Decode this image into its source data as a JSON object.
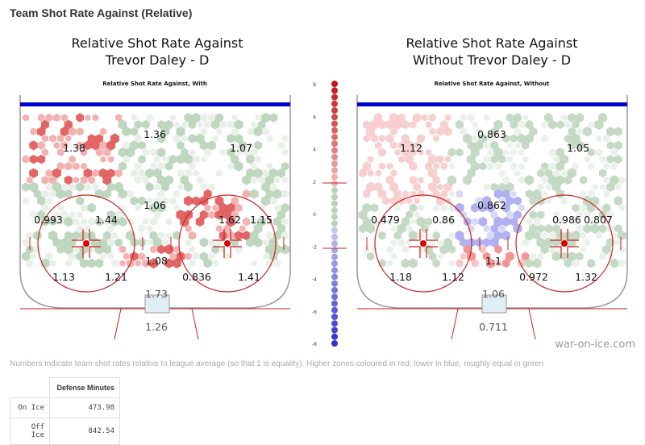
{
  "page": {
    "section_title": "Team Shot Rate Against (Relative)",
    "watermark": "war-on-ice.com",
    "footnote": "Numbers indicate team shot rates relative to league average (so that 1 is equality). Higher zones coloured in red, lower in blue, roughly equal in green"
  },
  "left": {
    "title_line1": "Relative Shot Rate Against",
    "title_line2": "Trevor Daley - D",
    "subtitle": "Relative Shot Rate Against, With",
    "zones": [
      "1.38",
      "1.36",
      "1.07",
      "1.06",
      "0.993",
      "1.44",
      "1.62",
      "1.15",
      "1.08",
      "1.13",
      "1.21",
      "0.836",
      "1.41",
      "1.73",
      "1.26"
    ]
  },
  "right": {
    "title_line1": "Relative Shot Rate Against",
    "title_line2": "Without Trevor Daley - D",
    "subtitle": "Relative Shot Rate Against, Without",
    "zones": [
      "1.12",
      "0.863",
      "1.05",
      "0.862",
      "0.479",
      "0.86",
      "0.986",
      "0.807",
      "1.1",
      "1.18",
      "1.12",
      "0.972",
      "1.32",
      "1.06",
      "0.711"
    ]
  },
  "scale": {
    "ticks": [
      "8",
      "6",
      "4",
      "2",
      "0",
      "-2",
      "-4",
      "-6",
      "-8"
    ],
    "colors": {
      "high": "#c0161b",
      "equal": "#8fbf8f",
      "low": "#3333cc"
    }
  },
  "table": {
    "header": "Defense Minutes",
    "rows": [
      {
        "label": "On Ice",
        "value": "473.98"
      },
      {
        "label": "Off Ice",
        "value": "842.54"
      }
    ]
  },
  "colors": {
    "goal_line": "#0000cc",
    "rink_line": "#cc2222",
    "faceoff_dot": "#dd0000"
  }
}
